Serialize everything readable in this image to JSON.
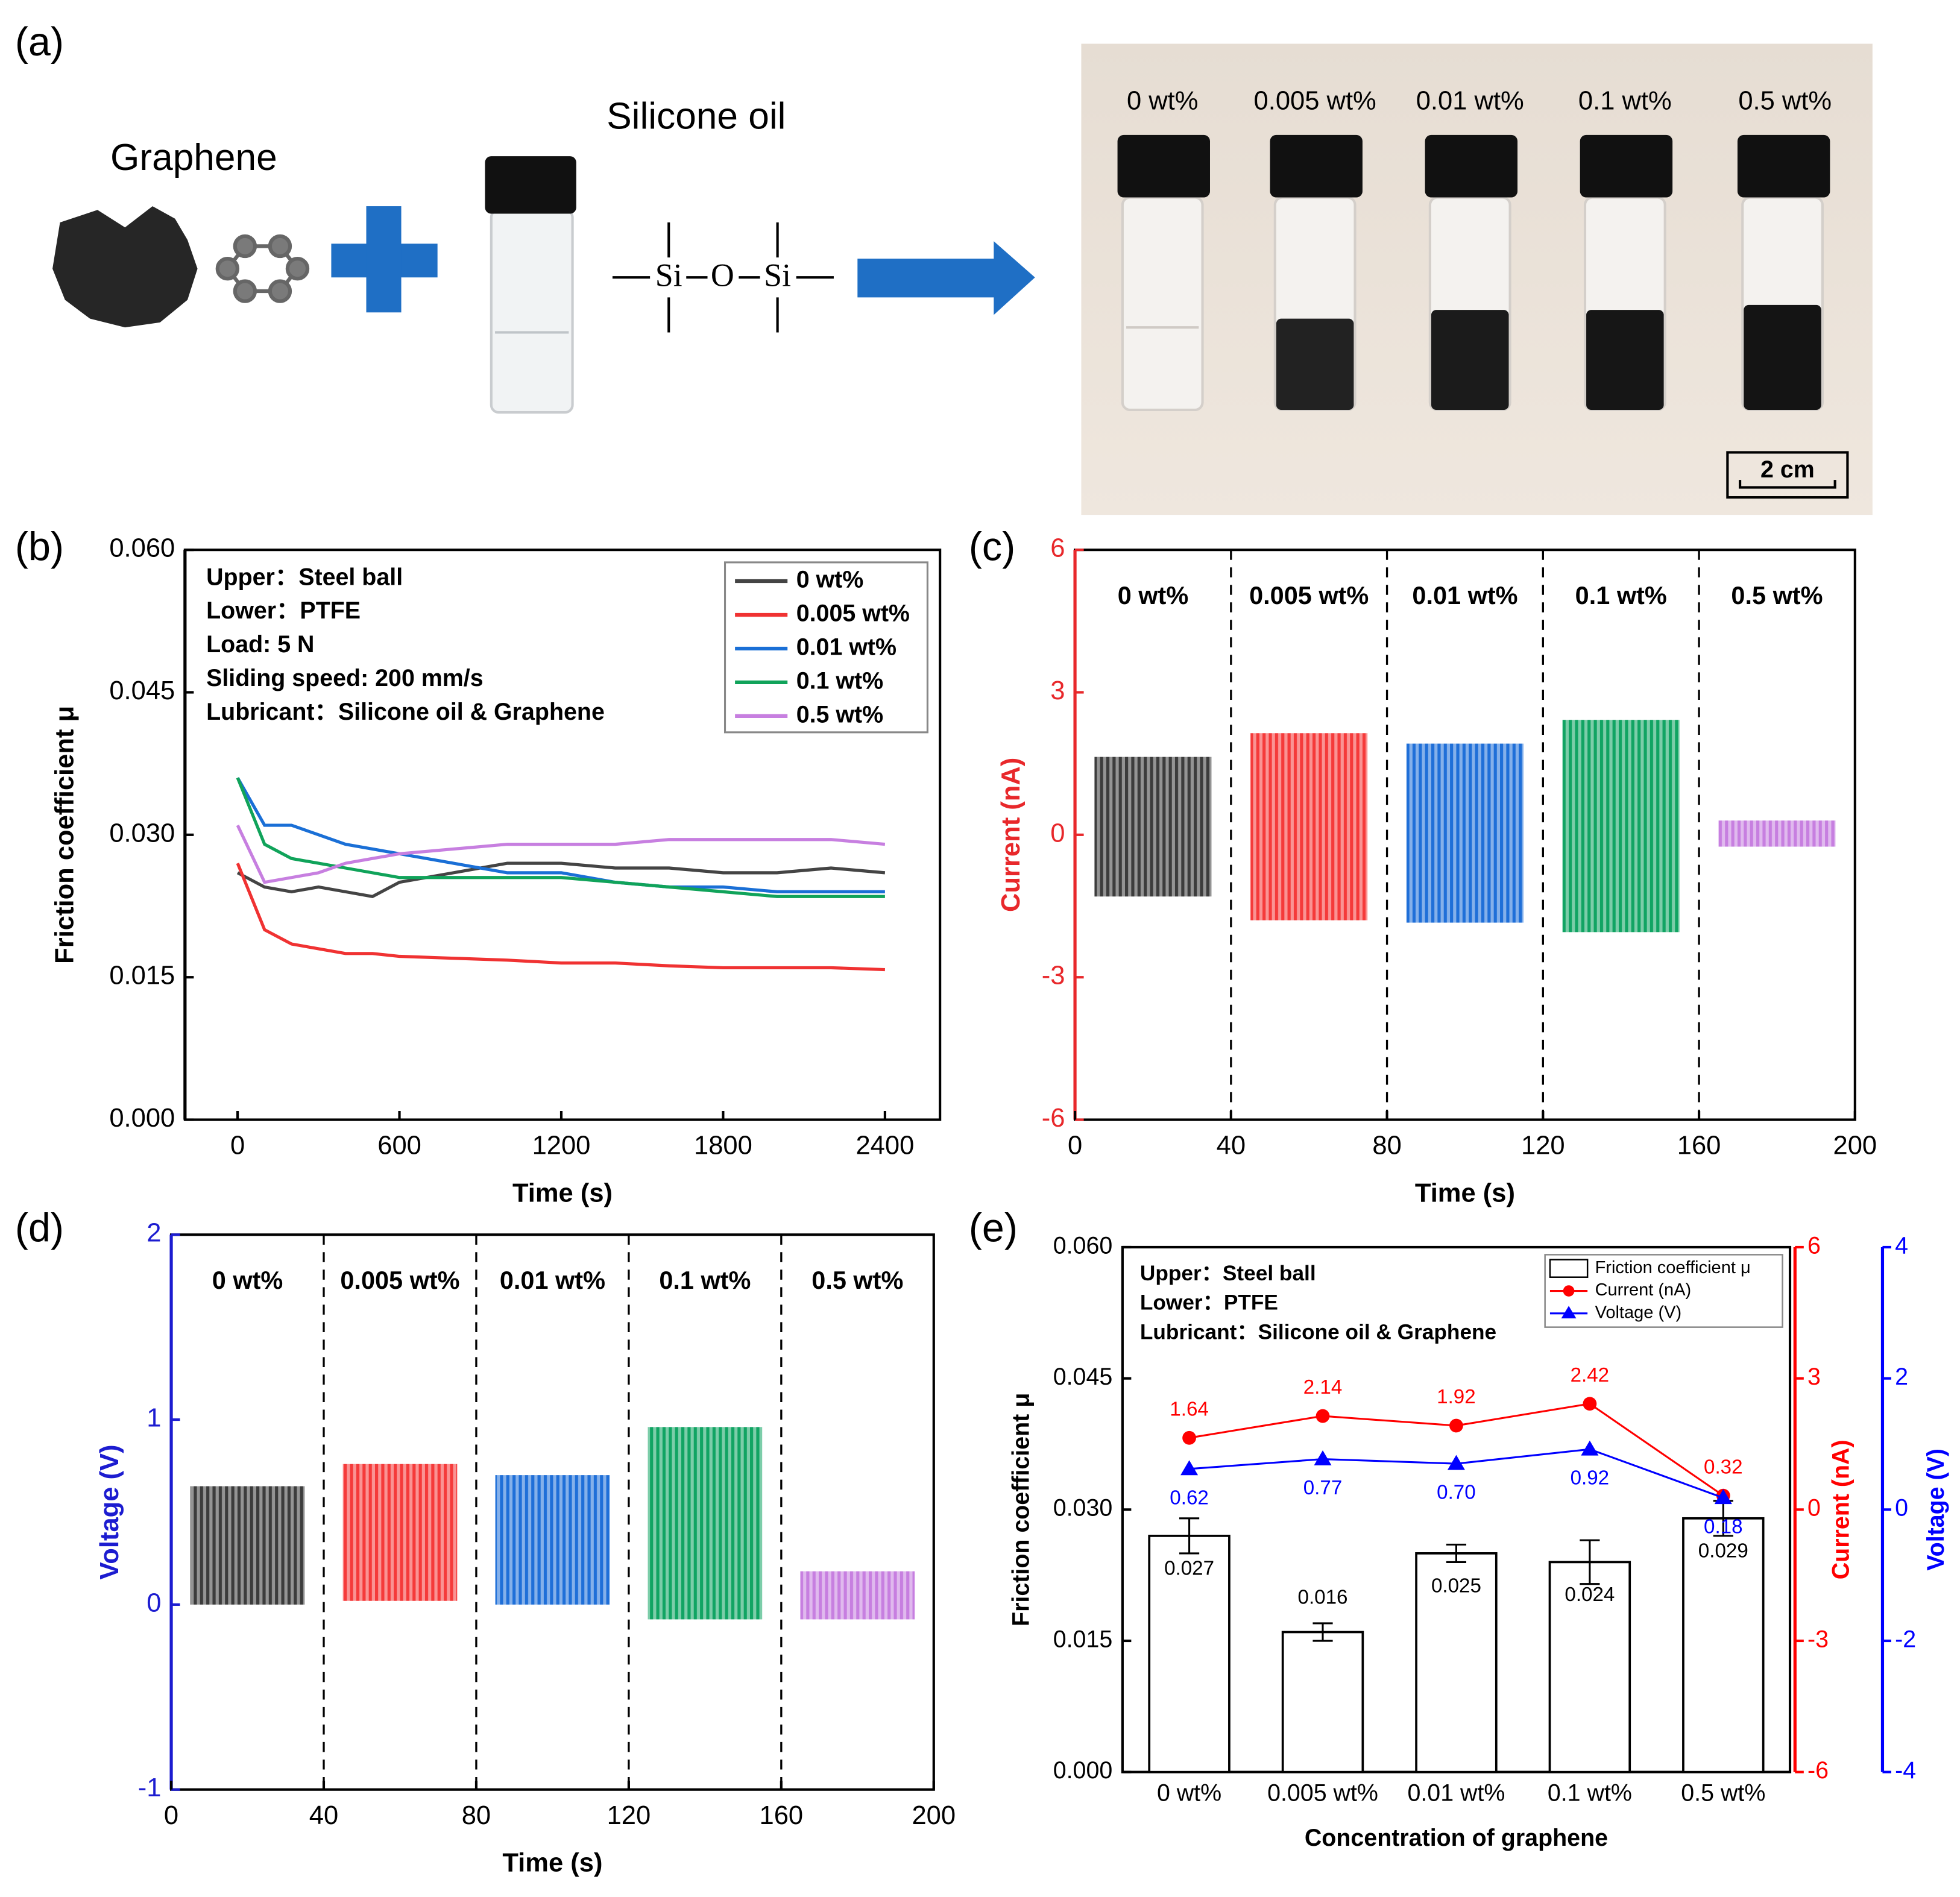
{
  "panel_labels": [
    "(a)",
    "(b)",
    "(c)",
    "(d)",
    "(e)"
  ],
  "panel_a": {
    "graphene": "Graphene",
    "silicone_oil": "Silicone oil",
    "formula": [
      "Si",
      "O",
      "Si"
    ],
    "samples": [
      "0 wt%",
      "0.005 wt%",
      "0.01 wt%",
      "0.1 wt%",
      "0.5 wt%"
    ],
    "scale_bar": "2 cm"
  },
  "chart_data": [
    {
      "type": "line",
      "xlabel": "Time (s)",
      "ylabel": "Friction coefficient μ",
      "annotations": [
        "Upper：Steel ball",
        "Lower：PTFE",
        "Load: 5 N",
        "Sliding speed: 200 mm/s",
        "Lubricant：Silicone oil & Graphene"
      ],
      "x": [
        0,
        100,
        200,
        300,
        400,
        500,
        600,
        800,
        1000,
        1200,
        1400,
        1600,
        1800,
        2000,
        2200,
        2400
      ],
      "xlim": [
        -195,
        2604
      ],
      "xticks": [
        0,
        600,
        1200,
        1800,
        2400
      ],
      "ylim": [
        0,
        0.06
      ],
      "yticks": [
        {
          "value": 0,
          "label": "0.000"
        },
        {
          "value": 0.015,
          "label": "0.015"
        },
        {
          "value": 0.03,
          "label": "0.030"
        },
        {
          "value": 0.045,
          "label": "0.045"
        },
        {
          "value": 0.06,
          "label": "0.060"
        }
      ],
      "legend": "upper right",
      "series": [
        {
          "name": "0 wt%",
          "color": "#444444",
          "values": [
            0.026,
            0.0245,
            0.024,
            0.0245,
            0.024,
            0.0235,
            0.025,
            0.026,
            0.027,
            0.027,
            0.0265,
            0.0265,
            0.026,
            0.026,
            0.0265,
            0.026
          ]
        },
        {
          "name": "0.005 wt%",
          "color": "#f03232",
          "values": [
            0.027,
            0.02,
            0.0185,
            0.018,
            0.0175,
            0.0175,
            0.0172,
            0.017,
            0.0168,
            0.0165,
            0.0165,
            0.0162,
            0.016,
            0.016,
            0.016,
            0.0158
          ]
        },
        {
          "name": "0.01 wt%",
          "color": "#1a6fd6",
          "values": [
            0.036,
            0.031,
            0.031,
            0.03,
            0.029,
            0.0285,
            0.028,
            0.027,
            0.026,
            0.026,
            0.025,
            0.0245,
            0.0245,
            0.024,
            0.024,
            0.024
          ]
        },
        {
          "name": "0.1 wt%",
          "color": "#10a35a",
          "values": [
            0.036,
            0.029,
            0.0275,
            0.027,
            0.0265,
            0.026,
            0.0255,
            0.0255,
            0.0255,
            0.0255,
            0.025,
            0.0245,
            0.024,
            0.0235,
            0.0235,
            0.0235
          ]
        },
        {
          "name": "0.5 wt%",
          "color": "#c77fe0",
          "values": [
            0.031,
            0.025,
            0.0255,
            0.026,
            0.027,
            0.0275,
            0.028,
            0.0285,
            0.029,
            0.029,
            0.029,
            0.0295,
            0.0295,
            0.0295,
            0.0295,
            0.029
          ]
        }
      ]
    },
    {
      "type": "band",
      "xlabel": "Time (s)",
      "ylabel": "Current (nA)",
      "axis_color": "#e8282b",
      "xlim": [
        0,
        200
      ],
      "xticks": [
        0,
        40,
        80,
        120,
        160,
        200
      ],
      "ylim": [
        -6,
        6
      ],
      "yticks": [
        -6,
        -3,
        0,
        3,
        6
      ],
      "dividers": [
        40,
        80,
        120,
        160
      ],
      "series": [
        {
          "name": "0 wt%",
          "color": "#3c3c3c",
          "x": [
            5,
            35
          ],
          "range": [
            -1.3,
            1.64
          ]
        },
        {
          "name": "0.005 wt%",
          "color": "#f53a3a",
          "x": [
            45,
            75
          ],
          "range": [
            -1.8,
            2.14
          ]
        },
        {
          "name": "0.01 wt%",
          "color": "#1f6fd8",
          "x": [
            85,
            115
          ],
          "range": [
            -1.85,
            1.92
          ]
        },
        {
          "name": "0.1 wt%",
          "color": "#11a463",
          "x": [
            125,
            155
          ],
          "range": [
            -2.05,
            2.42
          ]
        },
        {
          "name": "0.5 wt%",
          "color": "#c77fe0",
          "x": [
            165,
            195
          ],
          "range": [
            -0.25,
            0.3
          ]
        }
      ]
    },
    {
      "type": "band",
      "xlabel": "Time (s)",
      "ylabel": "Voltage (V)",
      "axis_color": "#1c1cd0",
      "xlim": [
        0,
        200
      ],
      "xticks": [
        0,
        40,
        80,
        120,
        160,
        200
      ],
      "ylim": [
        -1,
        2
      ],
      "yticks": [
        -1,
        0,
        1,
        2
      ],
      "dividers": [
        40,
        80,
        120,
        160
      ],
      "series": [
        {
          "name": "0 wt%",
          "color": "#3c3c3c",
          "x": [
            5,
            35
          ],
          "range": [
            0,
            0.64
          ]
        },
        {
          "name": "0.005 wt%",
          "color": "#f53a3a",
          "x": [
            45,
            75
          ],
          "range": [
            0.02,
            0.76
          ]
        },
        {
          "name": "0.01 wt%",
          "color": "#1f6fd8",
          "x": [
            85,
            115
          ],
          "range": [
            0,
            0.7
          ]
        },
        {
          "name": "0.1 wt%",
          "color": "#11a463",
          "x": [
            125,
            155
          ],
          "range": [
            -0.08,
            0.96
          ]
        },
        {
          "name": "0.5 wt%",
          "color": "#c77fe0",
          "x": [
            165,
            195
          ],
          "range": [
            -0.08,
            0.18
          ]
        }
      ]
    },
    {
      "type": "bar_line",
      "xlabel": "Concentration of graphene",
      "ylabel": "Friction coefficient μ",
      "y2label": "Current (nA)",
      "y3label": "Voltage (V)",
      "annotations": [
        "Upper：Steel ball",
        "Lower：PTFE",
        "Lubricant：Silicone oil & Graphene"
      ],
      "categories": [
        "0 wt%",
        "0.005 wt%",
        "0.01 wt%",
        "0.1 wt%",
        "0.5 wt%"
      ],
      "ylim": [
        0,
        0.06
      ],
      "yticks": [
        {
          "value": 0,
          "label": "0.000"
        },
        {
          "value": 0.015,
          "label": "0.015"
        },
        {
          "value": 0.03,
          "label": "0.030"
        },
        {
          "value": 0.045,
          "label": "0.045"
        },
        {
          "value": 0.06,
          "label": "0.060"
        }
      ],
      "y2lim": [
        -6,
        6
      ],
      "y2ticks": [
        -6,
        -3,
        0,
        3,
        6
      ],
      "y2color": "#ff0000",
      "y3lim": [
        -4,
        4
      ],
      "y3ticks": [
        -4,
        -2,
        0,
        2,
        4
      ],
      "y3color": "#0000ff",
      "legend": "upper right",
      "series": [
        {
          "name": "Friction coefficient μ",
          "type": "bar",
          "color": "#ffffff",
          "values": [
            0.027,
            0.016,
            0.025,
            0.024,
            0.029
          ],
          "errors": [
            0.002,
            0.001,
            0.001,
            0.0025,
            0.002
          ]
        },
        {
          "name": "Current (nA)",
          "type": "line",
          "axis": "y2",
          "color": "#ff0000",
          "values": [
            1.64,
            2.14,
            1.92,
            2.42,
            0.32
          ]
        },
        {
          "name": "Voltage (V)",
          "type": "line",
          "axis": "y3",
          "color": "#0000ff",
          "values": [
            0.62,
            0.77,
            0.7,
            0.92,
            0.18
          ],
          "value_labels": [
            "0.62",
            "0.77",
            "0.70",
            "0.92",
            "0.18"
          ]
        }
      ]
    }
  ]
}
